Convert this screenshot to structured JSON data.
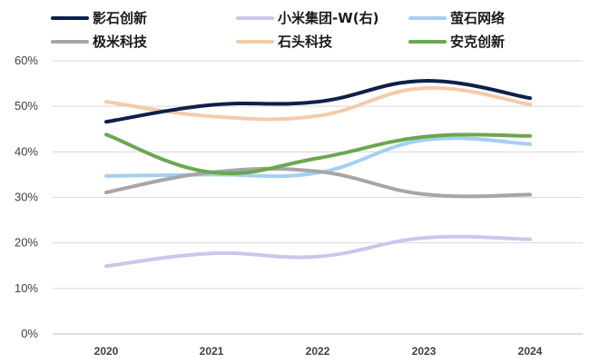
{
  "chart_data": {
    "type": "line",
    "title": "",
    "xlabel": "",
    "ylabel": "",
    "x": [
      "2020",
      "2021",
      "2022",
      "2023",
      "2024"
    ],
    "ylim": [
      0,
      60
    ],
    "y_ticks": [
      "0%",
      "10%",
      "20%",
      "30%",
      "40%",
      "50%",
      "60%"
    ],
    "grid": "horizontal",
    "legend_position": "top",
    "series": [
      {
        "name": "影石创新",
        "color": "#0d1f4c",
        "values": [
          46.6,
          50.3,
          51.0,
          55.6,
          51.8
        ]
      },
      {
        "name": "小米集团-W(右)",
        "color": "#c9c7ec",
        "values": [
          14.9,
          17.7,
          17.0,
          21.1,
          20.8
        ]
      },
      {
        "name": "萤石网络",
        "color": "#a3d0f2",
        "values": [
          34.7,
          35.0,
          35.4,
          42.6,
          41.7
        ]
      },
      {
        "name": "极米科技",
        "color": "#a6a6a6",
        "values": [
          31.1,
          35.5,
          35.7,
          30.7,
          30.6
        ]
      },
      {
        "name": "石头科技",
        "color": "#f4cba8",
        "values": [
          51.0,
          47.8,
          47.9,
          54.0,
          50.4
        ]
      },
      {
        "name": "安克创新",
        "color": "#6aa84f",
        "values": [
          43.8,
          35.5,
          38.6,
          43.3,
          43.5
        ]
      }
    ]
  }
}
